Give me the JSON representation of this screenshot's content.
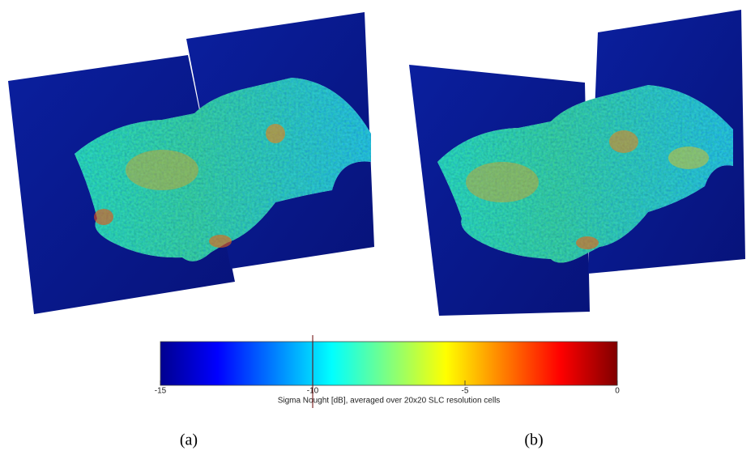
{
  "colorbar": {
    "label": "Sigma Nought [dB], averaged over 20x20 SLC resolution cells",
    "lim": [
      -15,
      0
    ],
    "ticks": [
      -15,
      -10,
      -5,
      0
    ],
    "marker": -10
  },
  "panels": [
    {
      "label": "(a)"
    },
    {
      "label": "(b)"
    }
  ]
}
